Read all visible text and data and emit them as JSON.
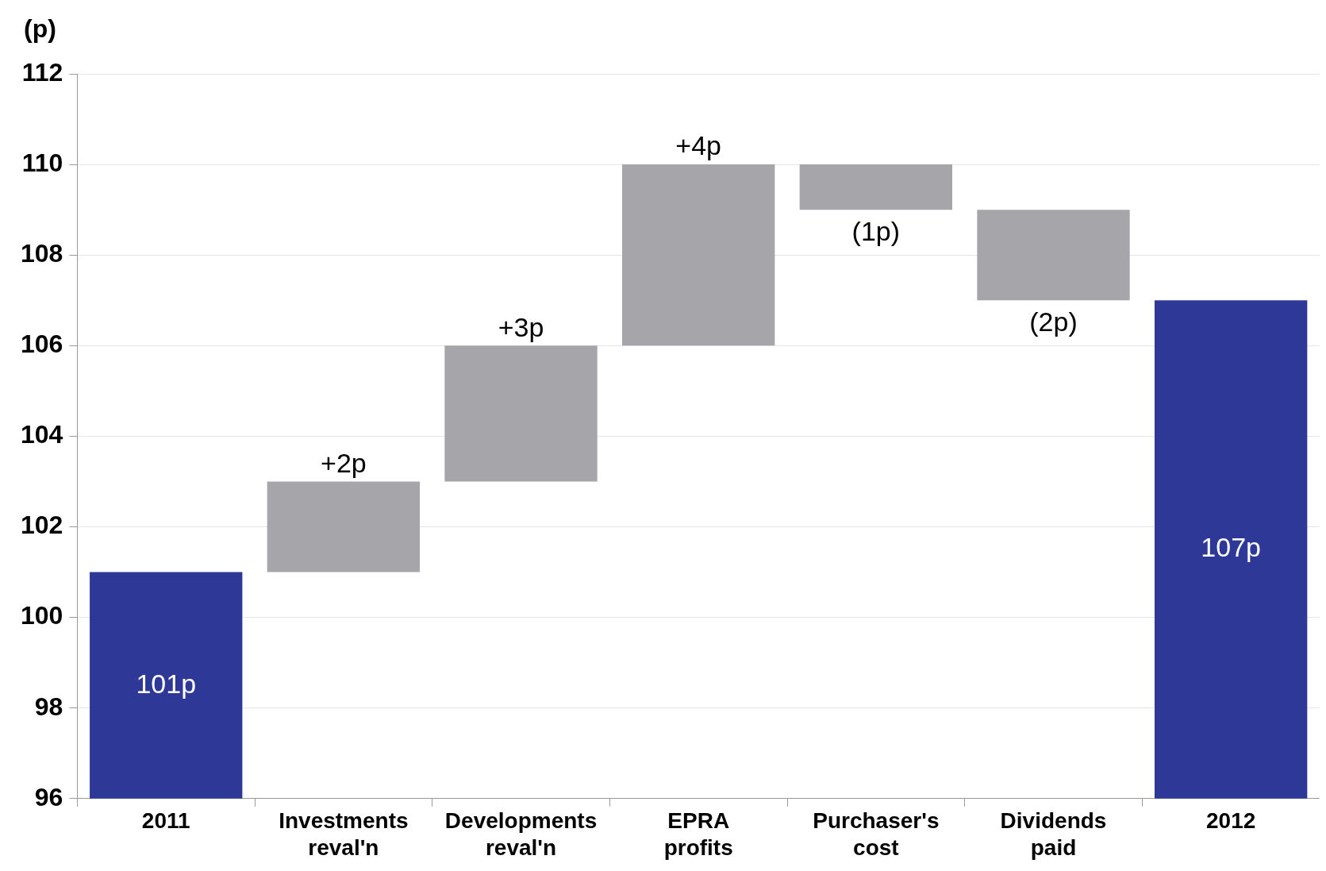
{
  "chart_data": {
    "type": "bar",
    "ylabel": "(p)",
    "categories": [
      "2011",
      "Investments reval'n",
      "Developments reval'n",
      "EPRA profits",
      "Purchaser's cost",
      "Dividends paid",
      "2012"
    ],
    "values": [
      101,
      2,
      3,
      4,
      -1,
      -2,
      107
    ],
    "base": [
      null,
      101,
      103,
      106,
      110,
      109,
      null
    ],
    "colors": [
      "#2e3896",
      "#a6a6aa",
      "#a6a6aa",
      "#a6a6aa",
      "#a6a6aa",
      "#a6a6aa",
      "#2e3896"
    ],
    "value_labels": [
      "101p",
      "+2p",
      "+3p",
      "+4p",
      "(1p)",
      "(2p)",
      "107p"
    ],
    "ylim": [
      96,
      112
    ],
    "yticks": [
      96,
      98,
      100,
      102,
      104,
      106,
      108,
      110,
      112
    ],
    "grid": "y",
    "legend": false
  }
}
